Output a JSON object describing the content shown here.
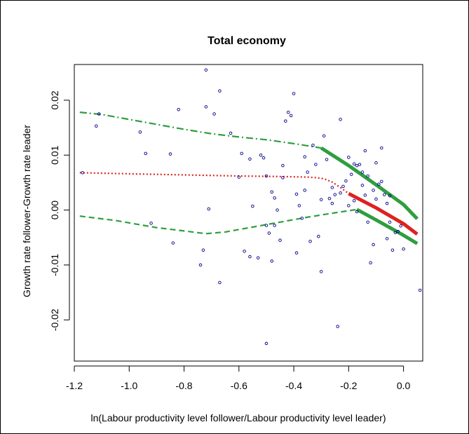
{
  "chart_data": {
    "type": "scatter",
    "title": "Total economy",
    "xlabel": "ln(Labour productivity level follower/Labour productivity level leader)",
    "ylabel": "Growth rate follower-Growth rate leader",
    "xlim": [
      -1.2,
      0.07
    ],
    "ylim": [
      -0.0275,
      0.0265
    ],
    "xticks": [
      -1.2,
      -1.0,
      -0.8,
      -0.6,
      -0.4,
      -0.2,
      0.0
    ],
    "xtick_labels": [
      "-1.2",
      "-1.0",
      "-0.8",
      "-0.6",
      "-0.4",
      "-0.2",
      "0.0"
    ],
    "yticks": [
      -0.02,
      -0.01,
      0.0,
      0.01,
      0.02
    ],
    "ytick_labels": [
      "-0.02",
      "-0.01",
      "0.00",
      "0.01",
      "0.02"
    ],
    "grid": false,
    "colors": {
      "points": "#00008B",
      "upper_band": "#2E9E3E",
      "center": "#DD2222",
      "lower_band": "#2E9E3E"
    },
    "scatter": {
      "x": [
        -1.17,
        -1.12,
        -1.11,
        -0.96,
        -0.94,
        -0.92,
        -0.85,
        -0.82,
        -0.84,
        -0.74,
        -0.72,
        -0.71,
        -0.69,
        -0.67,
        -0.67,
        -0.63,
        -0.59,
        -0.58,
        -0.56,
        -0.56,
        -0.52,
        -0.51,
        -0.5,
        -0.5,
        -0.49,
        -0.48,
        -0.48,
        -0.47,
        -0.46,
        -0.45,
        -0.44,
        -0.43,
        -0.42,
        -0.41,
        -0.4,
        -0.39,
        -0.38,
        -0.37,
        -0.36,
        -0.35,
        -0.34,
        -0.33,
        -0.32,
        -0.31,
        -0.3,
        -0.29,
        -0.28,
        -0.27,
        -0.26,
        -0.25,
        -0.24,
        -0.23,
        -0.22,
        -0.21,
        -0.2,
        -0.19,
        -0.18,
        -0.17,
        -0.16,
        -0.15,
        -0.14,
        -0.13,
        -0.12,
        -0.11,
        -0.1,
        -0.09,
        -0.08,
        -0.07,
        -0.06,
        -0.05,
        -0.04,
        -0.03,
        -0.02,
        -0.01,
        0.0,
        0.06,
        -0.72,
        -0.73,
        -0.55,
        -0.53,
        -0.47,
        -0.44,
        -0.39,
        -0.36,
        -0.3,
        -0.26,
        -0.23,
        -0.2,
        -0.17,
        -0.14,
        -0.11,
        -0.08,
        -0.1,
        -0.13,
        -0.15,
        -0.18,
        -0.06,
        -0.05,
        -0.5,
        -0.6
      ],
      "y": [
        0.0068,
        0.0153,
        0.0175,
        0.0142,
        0.0103,
        -0.0024,
        0.0102,
        0.0183,
        -0.006,
        -0.01,
        0.0255,
        0.0002,
        0.0175,
        0.0217,
        -0.0132,
        0.014,
        0.0103,
        -0.0075,
        0.0093,
        -0.0085,
        0.01,
        0.0095,
        0.0062,
        -0.0028,
        -0.0042,
        -0.0093,
        0.0033,
        0.0022,
        0.0,
        -0.0055,
        0.0081,
        0.0162,
        0.0178,
        0.0172,
        0.0212,
        0.0029,
        0.0008,
        -0.0015,
        0.0036,
        0.0069,
        -0.0057,
        0.0118,
        0.0083,
        -0.0048,
        -0.0112,
        0.0135,
        0.0092,
        0.0021,
        0.0041,
        0.0028,
        -0.0212,
        0.0165,
        0.0043,
        0.0053,
        0.0096,
        0.0065,
        0.0084,
        0.0081,
        0.0083,
        0.0069,
        0.0108,
        -0.0022,
        -0.0096,
        -0.0063,
        0.0086,
        0.0047,
        0.0113,
        0.0028,
        -0.0052,
        -0.0022,
        -0.0073,
        -0.0041,
        -0.0039,
        -0.0029,
        -0.0071,
        -0.0146,
        0.0188,
        -0.0073,
        0.0007,
        -0.0087,
        -0.0028,
        0.0059,
        -0.0078,
        0.0097,
        0.0019,
        0.0012,
        0.0031,
        0.0008,
        -0.0003,
        0.0027,
        0.0036,
        0.0052,
        0.002,
        0.0062,
        0.0045,
        0.0017,
        0.0012,
        0.0026,
        -0.0243,
        0.006
      ],
      "marker": "open-circle"
    },
    "series": [
      {
        "x": [
          -1.18,
          -1.1,
          -1.0,
          -0.9,
          -0.8,
          -0.7,
          -0.6,
          -0.5,
          -0.4,
          -0.3
        ],
        "y": [
          0.0178,
          0.0174,
          0.0165,
          0.0156,
          0.0147,
          0.0139,
          0.0133,
          0.0128,
          0.0121,
          0.0113
        ],
        "style": "dashdot"
      },
      {
        "x": [
          -0.3,
          -0.2,
          -0.1,
          0.0,
          0.05
        ],
        "y": [
          0.0113,
          0.0081,
          0.0046,
          0.001,
          -0.0016
        ],
        "style": "solid"
      },
      {
        "x": [
          -1.18,
          -1.0,
          -0.8,
          -0.6,
          -0.45,
          -0.35,
          -0.32,
          -0.29,
          -0.26,
          -0.23,
          -0.2
        ],
        "y": [
          0.0068,
          0.0066,
          0.0064,
          0.0062,
          0.0061,
          0.006,
          0.0059,
          0.0057,
          0.0051,
          0.0041,
          0.003
        ],
        "style": "dotted"
      },
      {
        "x": [
          -0.2,
          -0.1,
          0.0,
          0.05
        ],
        "y": [
          0.003,
          0.0004,
          -0.0025,
          -0.0044
        ],
        "style": "solid"
      },
      {
        "x": [
          -1.18,
          -1.05,
          -0.9,
          -0.8,
          -0.72,
          -0.65,
          -0.55,
          -0.45,
          -0.35,
          -0.25,
          -0.17
        ],
        "y": [
          -0.0011,
          -0.0019,
          -0.0032,
          -0.0038,
          -0.0043,
          -0.004,
          -0.0031,
          -0.0022,
          -0.0013,
          -0.0005,
          0.0001
        ],
        "style": "dashed"
      },
      {
        "x": [
          -0.17,
          -0.1,
          0.0,
          0.05
        ],
        "y": [
          0.0001,
          -0.0018,
          -0.0046,
          -0.0061
        ],
        "style": "solid"
      }
    ]
  }
}
